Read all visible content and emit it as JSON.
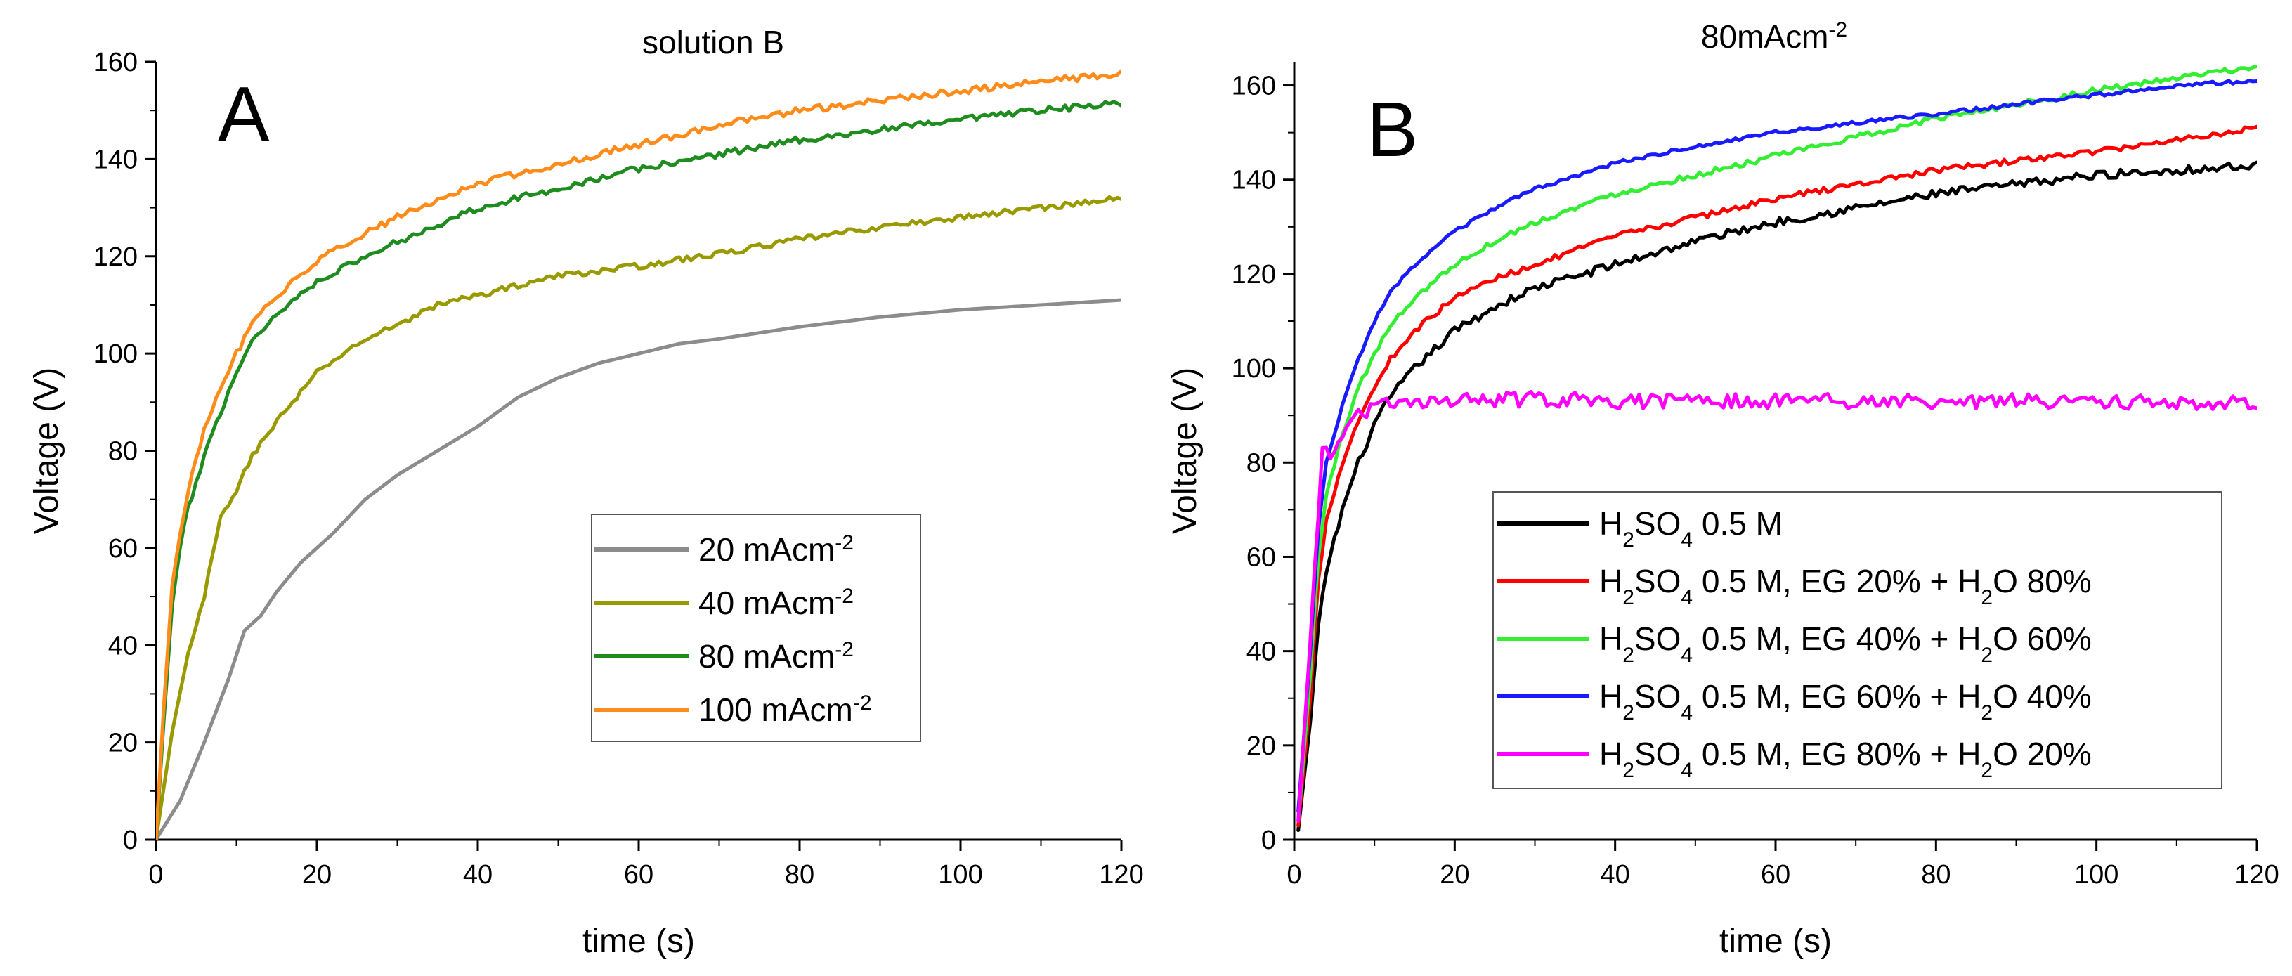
{
  "chart_data": [
    {
      "type": "line",
      "title": "solution  B",
      "panel_label": "A",
      "xlabel": "time (s)",
      "ylabel": "Voltage (V)",
      "xlim": [
        0,
        120
      ],
      "ylim": [
        0,
        160
      ],
      "xticks": [
        0,
        20,
        40,
        60,
        80,
        100,
        120
      ],
      "yticks": [
        0,
        20,
        40,
        60,
        80,
        100,
        120,
        140,
        160
      ],
      "grid": false,
      "legend_position": "center-right",
      "series": [
        {
          "name": "20 mAcm-2",
          "label_main": "20 mAcm",
          "label_sup": "-2",
          "color": "#8c8c8c",
          "noise": 0,
          "points": [
            [
              0,
              0
            ],
            [
              3,
              8
            ],
            [
              6,
              20
            ],
            [
              9,
              33
            ],
            [
              11,
              43
            ],
            [
              13,
              46
            ],
            [
              15,
              51
            ],
            [
              18,
              57
            ],
            [
              22,
              63
            ],
            [
              26,
              70
            ],
            [
              30,
              75
            ],
            [
              35,
              80
            ],
            [
              40,
              85
            ],
            [
              45,
              91
            ],
            [
              50,
              95
            ],
            [
              55,
              98
            ],
            [
              60,
              100
            ],
            [
              65,
              102
            ],
            [
              70,
              103
            ],
            [
              80,
              105.5
            ],
            [
              90,
              107.5
            ],
            [
              100,
              109
            ],
            [
              110,
              110
            ],
            [
              120,
              111
            ]
          ]
        },
        {
          "name": "40 mAcm-2",
          "label_main": "40 mAcm",
          "label_sup": "-2",
          "color": "#999900",
          "noise": 0.6,
          "points": [
            [
              0,
              0
            ],
            [
              2,
              22
            ],
            [
              4,
              38
            ],
            [
              6,
              50
            ],
            [
              8,
              66
            ],
            [
              10,
              72
            ],
            [
              12,
              79
            ],
            [
              14,
              84
            ],
            [
              16,
              88
            ],
            [
              18,
              92
            ],
            [
              20,
              96
            ],
            [
              25,
              102
            ],
            [
              30,
              106
            ],
            [
              35,
              110
            ],
            [
              40,
              112
            ],
            [
              50,
              116
            ],
            [
              60,
              118
            ],
            [
              70,
              120.5
            ],
            [
              80,
              123.5
            ],
            [
              90,
              126
            ],
            [
              100,
              128
            ],
            [
              110,
              130
            ],
            [
              120,
              132
            ]
          ]
        },
        {
          "name": "80 mAcm-2",
          "label_main": "80 mAcm",
          "label_sup": "-2",
          "color": "#1e8c1e",
          "noise": 0.7,
          "points": [
            [
              0,
              0
            ],
            [
              1,
              25
            ],
            [
              2,
              48
            ],
            [
              3,
              60
            ],
            [
              4,
              68
            ],
            [
              6,
              79
            ],
            [
              8,
              88
            ],
            [
              10,
              96
            ],
            [
              12,
              103
            ],
            [
              15,
              108
            ],
            [
              20,
              115
            ],
            [
              25,
              119
            ],
            [
              30,
              123
            ],
            [
              40,
              130
            ],
            [
              50,
              134
            ],
            [
              60,
              138
            ],
            [
              70,
              141
            ],
            [
              80,
              144
            ],
            [
              90,
              146
            ],
            [
              100,
              148
            ],
            [
              110,
              150
            ],
            [
              120,
              151.5
            ]
          ]
        },
        {
          "name": "100 mAcm-2",
          "label_main": "100 mAcm",
          "label_sup": "-2",
          "color": "#ff8c1a",
          "noise": 0.7,
          "points": [
            [
              0,
              0
            ],
            [
              1,
              28
            ],
            [
              2,
              52
            ],
            [
              3,
              63
            ],
            [
              4,
              72
            ],
            [
              6,
              84
            ],
            [
              8,
              93
            ],
            [
              10,
              100
            ],
            [
              12,
              106
            ],
            [
              15,
              112
            ],
            [
              20,
              119
            ],
            [
              25,
              124
            ],
            [
              30,
              128
            ],
            [
              40,
              135
            ],
            [
              50,
              139
            ],
            [
              60,
              143
            ],
            [
              70,
              147
            ],
            [
              80,
              150
            ],
            [
              90,
              152
            ],
            [
              100,
              154
            ],
            [
              110,
              156
            ],
            [
              120,
              157.5
            ]
          ]
        }
      ]
    },
    {
      "type": "line",
      "title": "80mAcm",
      "title_sup": "-2",
      "panel_label": "B",
      "xlabel": "time (s)",
      "ylabel": "Voltage (V)",
      "xlim": [
        0,
        120
      ],
      "ylim": [
        0,
        165
      ],
      "xticks": [
        0,
        20,
        40,
        60,
        80,
        100,
        120
      ],
      "yticks": [
        0,
        20,
        40,
        60,
        80,
        100,
        120,
        140,
        160
      ],
      "grid": false,
      "legend_position": "bottom-right",
      "series": [
        {
          "name": "H2SO4 0.5 M",
          "label_parts": [
            [
              "H",
              ""
            ],
            [
              "2",
              "sub"
            ],
            [
              "SO",
              ""
            ],
            [
              "4",
              "sub"
            ],
            [
              " 0.5 M",
              ""
            ]
          ],
          "color": "#000000",
          "noise": 0.9,
          "points": [
            [
              0.5,
              2
            ],
            [
              2,
              25
            ],
            [
              3,
              45
            ],
            [
              4,
              57
            ],
            [
              6,
              70
            ],
            [
              8,
              80
            ],
            [
              10,
              88
            ],
            [
              12,
              94
            ],
            [
              15,
              100
            ],
            [
              20,
              108
            ],
            [
              25,
              113
            ],
            [
              30,
              117
            ],
            [
              40,
              122
            ],
            [
              50,
              127
            ],
            [
              60,
              131
            ],
            [
              70,
              134
            ],
            [
              80,
              137
            ],
            [
              90,
              139
            ],
            [
              100,
              141
            ],
            [
              110,
              142
            ],
            [
              120,
              143
            ]
          ]
        },
        {
          "name": "H2SO4 0.5 M, EG 20% + H2O 80%",
          "label_parts": [
            [
              "H",
              ""
            ],
            [
              "2",
              "sub"
            ],
            [
              "SO",
              ""
            ],
            [
              "4",
              "sub"
            ],
            [
              " 0.5 M, EG 20% + H",
              ""
            ],
            [
              "2",
              "sub"
            ],
            [
              "O 80%",
              ""
            ]
          ],
          "color": "#ff0000",
          "noise": 0.6,
          "points": [
            [
              0.5,
              3
            ],
            [
              2,
              30
            ],
            [
              3,
              55
            ],
            [
              4,
              68
            ],
            [
              6,
              80
            ],
            [
              8,
              89
            ],
            [
              10,
              96
            ],
            [
              12,
              102
            ],
            [
              15,
              108
            ],
            [
              20,
              115
            ],
            [
              25,
              119
            ],
            [
              30,
              122
            ],
            [
              40,
              128
            ],
            [
              50,
              132
            ],
            [
              60,
              136
            ],
            [
              70,
              139
            ],
            [
              80,
              142
            ],
            [
              90,
              144
            ],
            [
              100,
              146
            ],
            [
              110,
              148.5
            ],
            [
              120,
              151
            ]
          ]
        },
        {
          "name": "H2SO4 0.5 M, EG 40% + H2O 60%",
          "label_parts": [
            [
              "H",
              ""
            ],
            [
              "2",
              "sub"
            ],
            [
              "SO",
              ""
            ],
            [
              "4",
              "sub"
            ],
            [
              " 0.5 M, EG 40% + H",
              ""
            ],
            [
              "2",
              "sub"
            ],
            [
              "O 60%",
              ""
            ]
          ],
          "color": "#33ee33",
          "noise": 0.6,
          "points": [
            [
              0.5,
              4
            ],
            [
              2,
              35
            ],
            [
              3,
              60
            ],
            [
              4,
              73
            ],
            [
              6,
              86
            ],
            [
              8,
              96
            ],
            [
              10,
              103
            ],
            [
              12,
              109
            ],
            [
              15,
              115
            ],
            [
              20,
              122
            ],
            [
              25,
              127
            ],
            [
              30,
              131
            ],
            [
              40,
              137
            ],
            [
              50,
              141
            ],
            [
              60,
              145
            ],
            [
              70,
              149
            ],
            [
              80,
              153
            ],
            [
              90,
              156
            ],
            [
              100,
              159
            ],
            [
              110,
              161.5
            ],
            [
              120,
              164
            ]
          ]
        },
        {
          "name": "H2SO4 0.5 M, EG 60% + H2O 40%",
          "label_parts": [
            [
              "H",
              ""
            ],
            [
              "2",
              "sub"
            ],
            [
              "SO",
              ""
            ],
            [
              "4",
              "sub"
            ],
            [
              " 0.5 M, EG 60% + H",
              ""
            ],
            [
              "2",
              "sub"
            ],
            [
              "O 40%",
              ""
            ]
          ],
          "color": "#1a1aff",
          "noise": 0.4,
          "points": [
            [
              0.5,
              6
            ],
            [
              2,
              40
            ],
            [
              3,
              66
            ],
            [
              4,
              80
            ],
            [
              6,
              92
            ],
            [
              8,
              102
            ],
            [
              10,
              110
            ],
            [
              12,
              116
            ],
            [
              15,
              122
            ],
            [
              20,
              129
            ],
            [
              25,
              134
            ],
            [
              30,
              138
            ],
            [
              40,
              143.5
            ],
            [
              50,
              147
            ],
            [
              60,
              150
            ],
            [
              70,
              152
            ],
            [
              80,
              154
            ],
            [
              90,
              156
            ],
            [
              100,
              158
            ],
            [
              110,
              160
            ],
            [
              120,
              161
            ]
          ]
        },
        {
          "name": "H2SO4 0.5 M, EG 80% + H2O 20%",
          "label_parts": [
            [
              "H",
              ""
            ],
            [
              "2",
              "sub"
            ],
            [
              "SO",
              ""
            ],
            [
              "4",
              "sub"
            ],
            [
              " 0.5 M, EG 80% + H",
              ""
            ],
            [
              "2",
              "sub"
            ],
            [
              "O 20%",
              ""
            ]
          ],
          "color": "#ff00ff",
          "noise": 1.6,
          "points": [
            [
              0.5,
              4
            ],
            [
              2,
              42
            ],
            [
              3,
              70
            ],
            [
              3.5,
              82
            ],
            [
              5,
              82
            ],
            [
              6,
              86
            ],
            [
              8,
              90
            ],
            [
              10,
              92
            ],
            [
              15,
              92.5
            ],
            [
              20,
              93
            ],
            [
              30,
              93.5
            ],
            [
              40,
              93
            ],
            [
              60,
              93
            ],
            [
              80,
              93
            ],
            [
              100,
              93
            ],
            [
              120,
              92.5
            ]
          ]
        }
      ]
    }
  ]
}
